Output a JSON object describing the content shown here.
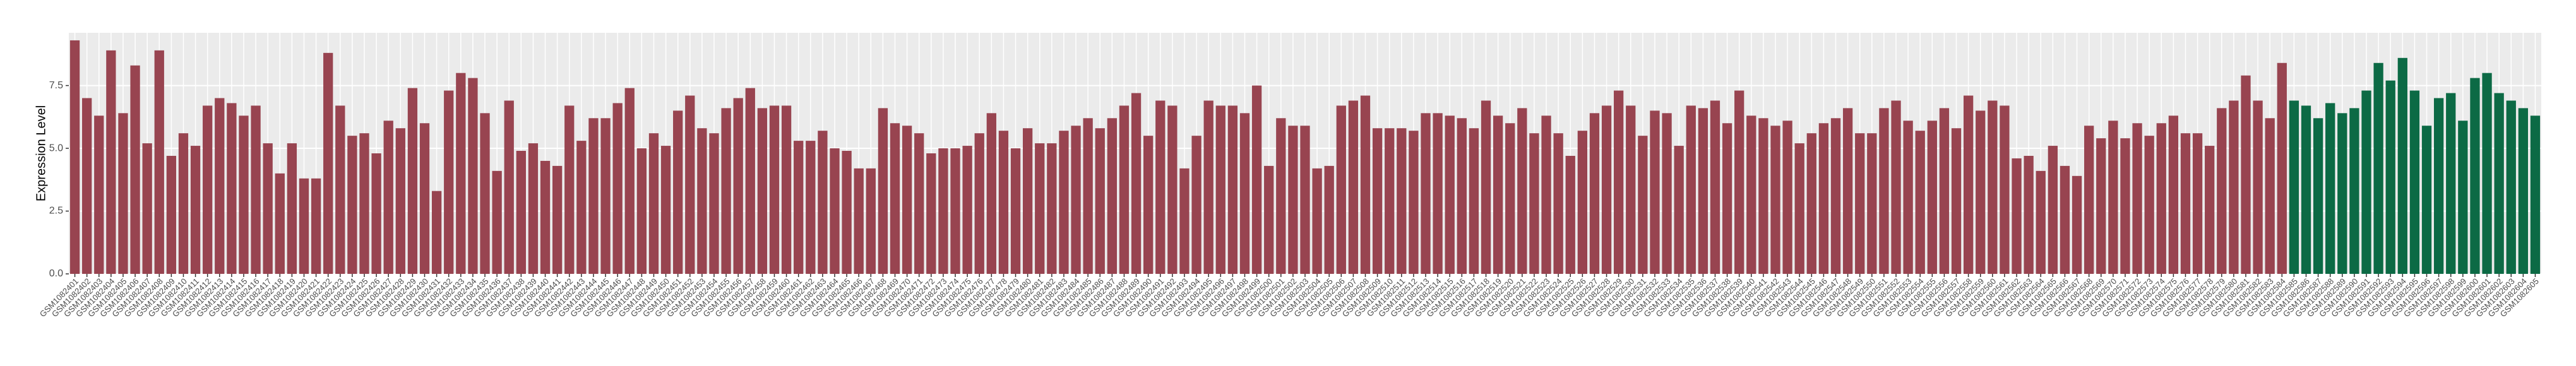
{
  "chart_data": {
    "type": "bar",
    "y_label": "Expression Level",
    "ylim": [
      0,
      9.6
    ],
    "yticks": [
      {
        "value": 0,
        "label": "0.0"
      },
      {
        "value": 2.5,
        "label": "2.5"
      },
      {
        "value": 5,
        "label": "5.0"
      },
      {
        "value": 7.5,
        "label": "7.5"
      }
    ],
    "grid": true,
    "groups": [
      {
        "color": "#984450",
        "categories": [
          "GSM1082401",
          "GSM1082402",
          "GSM1082403",
          "GSM1082404",
          "GSM1082405",
          "GSM1082406",
          "GSM1082407",
          "GSM1082408",
          "GSM1082409",
          "GSM1082410",
          "GSM1082411",
          "GSM1082412",
          "GSM1082413",
          "GSM1082414",
          "GSM1082415",
          "GSM1082416",
          "GSM1082417",
          "GSM1082418",
          "GSM1082419",
          "GSM1082420",
          "GSM1082421",
          "GSM1082422",
          "GSM1082423",
          "GSM1082424",
          "GSM1082425",
          "GSM1082426",
          "GSM1082427",
          "GSM1082428",
          "GSM1082429",
          "GSM1082430",
          "GSM1082431",
          "GSM1082432",
          "GSM1082433",
          "GSM1082434",
          "GSM1082435",
          "GSM1082436",
          "GSM1082437",
          "GSM1082438",
          "GSM1082439",
          "GSM1082440",
          "GSM1082441",
          "GSM1082442",
          "GSM1082443",
          "GSM1082444",
          "GSM1082445",
          "GSM1082446",
          "GSM1082447",
          "GSM1082448",
          "GSM1082449",
          "GSM1082450",
          "GSM1082451",
          "GSM1082452",
          "GSM1082453",
          "GSM1082454",
          "GSM1082455",
          "GSM1082456",
          "GSM1082457",
          "GSM1082458",
          "GSM1082459",
          "GSM1082460",
          "GSM1082461",
          "GSM1082462",
          "GSM1082463",
          "GSM1082464",
          "GSM1082465",
          "GSM1082466",
          "GSM1082467",
          "GSM1082468",
          "GSM1082469",
          "GSM1082470",
          "GSM1082471",
          "GSM1082472",
          "GSM1082473",
          "GSM1082474",
          "GSM1082475",
          "GSM1082476",
          "GSM1082477",
          "GSM1082478",
          "GSM1082479",
          "GSM1082480",
          "GSM1082481",
          "GSM1082482",
          "GSM1082483",
          "GSM1082484",
          "GSM1082485",
          "GSM1082486",
          "GSM1082487",
          "GSM1082488",
          "GSM1082489",
          "GSM1082490",
          "GSM1082491",
          "GSM1082492",
          "GSM1082493",
          "GSM1082494",
          "GSM1082495",
          "GSM1082496",
          "GSM1082497",
          "GSM1082498",
          "GSM1082499",
          "GSM1082500",
          "GSM1082501",
          "GSM1082502",
          "GSM1082503",
          "GSM1082504",
          "GSM1082505",
          "GSM1082506",
          "GSM1082507",
          "GSM1082508",
          "GSM1082509",
          "GSM1082510",
          "GSM1082511",
          "GSM1082512",
          "GSM1082513",
          "GSM1082514",
          "GSM1082515",
          "GSM1082516",
          "GSM1082517",
          "GSM1082518",
          "GSM1082519",
          "GSM1082520",
          "GSM1082521",
          "GSM1082522",
          "GSM1082523",
          "GSM1082524",
          "GSM1082525",
          "GSM1082526",
          "GSM1082527",
          "GSM1082528",
          "GSM1082529",
          "GSM1082530",
          "GSM1082531",
          "GSM1082532",
          "GSM1082533",
          "GSM1082534",
          "GSM1082535",
          "GSM1082536",
          "GSM1082537",
          "GSM1082538",
          "GSM1082539",
          "GSM1082540",
          "GSM1082541",
          "GSM1082542",
          "GSM1082543",
          "GSM1082544",
          "GSM1082545",
          "GSM1082546",
          "GSM1082547",
          "GSM1082548",
          "GSM1082549",
          "GSM1082550",
          "GSM1082551",
          "GSM1082552",
          "GSM1082553",
          "GSM1082554",
          "GSM1082555",
          "GSM1082556",
          "GSM1082557",
          "GSM1082558",
          "GSM1082559",
          "GSM1082560",
          "GSM1082561",
          "GSM1082562",
          "GSM1082563",
          "GSM1082564",
          "GSM1082565",
          "GSM1082566",
          "GSM1082567",
          "GSM1082568",
          "GSM1082569",
          "GSM1082570",
          "GSM1082571",
          "GSM1082572",
          "GSM1082573",
          "GSM1082574",
          "GSM1082575",
          "GSM1082576",
          "GSM1082577",
          "GSM1082578",
          "GSM1082579",
          "GSM1082580",
          "GSM1082581",
          "GSM1082582",
          "GSM1082583",
          "GSM1082584"
        ],
        "values": [
          9.3,
          7.0,
          6.3,
          8.9,
          6.4,
          8.3,
          5.2,
          8.9,
          4.7,
          5.6,
          5.1,
          6.7,
          7.0,
          6.8,
          6.3,
          6.7,
          5.2,
          4.0,
          5.2,
          3.8,
          3.8,
          8.8,
          6.7,
          5.5,
          5.6,
          4.8,
          6.1,
          5.8,
          7.4,
          6.0,
          3.3,
          7.3,
          8.0,
          7.8,
          6.4,
          4.1,
          6.9,
          4.9,
          5.2,
          4.5,
          4.3,
          6.7,
          5.3,
          6.2,
          6.2,
          6.8,
          7.4,
          5.0,
          5.6,
          5.1,
          6.5,
          7.1,
          5.8,
          5.6,
          6.6,
          7.0,
          7.4,
          6.6,
          6.7,
          6.7,
          5.3,
          5.3,
          5.7,
          5.0,
          4.9,
          4.2,
          4.2,
          6.6,
          6.0,
          5.9,
          5.6,
          4.8,
          5.0,
          5.0,
          5.1,
          5.6,
          6.4,
          5.7,
          5.0,
          5.8,
          5.2,
          5.2,
          5.7,
          5.9,
          6.2,
          5.8,
          6.2,
          6.7,
          7.2,
          5.5,
          6.9,
          6.7,
          4.2,
          5.5,
          6.9,
          6.7,
          6.7,
          6.4,
          7.5,
          4.3,
          6.2,
          5.9,
          5.9,
          4.2,
          4.3,
          6.7,
          6.9,
          7.1,
          5.8,
          5.8,
          5.8,
          5.7,
          6.4,
          6.4,
          6.3,
          6.2,
          5.8,
          6.9,
          6.3,
          6.0,
          6.6,
          5.6,
          6.3,
          5.6,
          4.7,
          5.7,
          6.4,
          6.7,
          7.3,
          6.7,
          5.5,
          6.5,
          6.4,
          5.1,
          6.7,
          6.6,
          6.9,
          6.0,
          7.3,
          6.3,
          6.2,
          5.9,
          6.1,
          5.2,
          5.6,
          6.0,
          6.2,
          6.6,
          5.6,
          5.6,
          6.6,
          6.9,
          6.1,
          5.7,
          6.1,
          6.6,
          5.8,
          7.1,
          6.5,
          6.9,
          6.7,
          4.6,
          4.7,
          4.1,
          5.1,
          4.3,
          3.9,
          5.9,
          5.4,
          6.1,
          5.4,
          6.0,
          5.5,
          6.0,
          6.3,
          5.6,
          5.6,
          5.1,
          6.6,
          6.9,
          7.9,
          6.9,
          6.2,
          8.4
        ]
      },
      {
        "color": "#0c6a45",
        "categories": [
          "GSM1082585",
          "GSM1082586",
          "GSM1082587",
          "GSM1082588",
          "GSM1082589",
          "GSM1082590",
          "GSM1082591",
          "GSM1082592",
          "GSM1082593",
          "GSM1082594",
          "GSM1082595",
          "GSM1082596",
          "GSM1082597",
          "GSM1082598",
          "GSM1082599",
          "GSM1082600",
          "GSM1082601",
          "GSM1082602",
          "GSM1082603",
          "GSM1082604",
          "GSM1082605"
        ],
        "values": [
          6.9,
          6.7,
          6.2,
          6.8,
          6.4,
          6.6,
          7.3,
          8.4,
          7.7,
          8.6,
          7.3,
          5.9,
          7.0,
          7.2,
          6.1,
          7.8,
          8.0,
          7.2,
          6.9,
          6.6,
          6.3
        ]
      }
    ]
  }
}
